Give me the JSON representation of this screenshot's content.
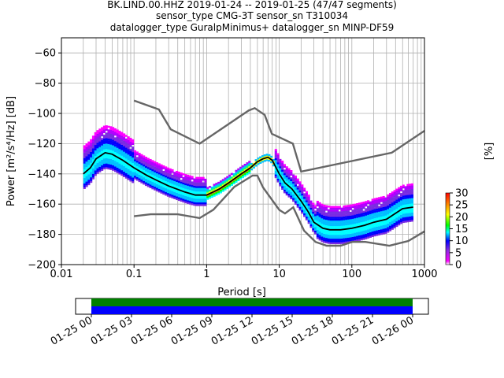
{
  "chart_data": {
    "type": "heatmap",
    "title_lines": [
      "BK.LIND.00.HHZ   2019-01-24 -- 2019-01-25  (47/47 segments)",
      "sensor_type CMG-3T sensor_sn T310034",
      "datalogger_type GuralpMinimus+ datalogger_sn MINP-DF59"
    ],
    "xlabel": "Period [s]",
    "ylabel": "Power [m²/s⁴/Hz] [dB]",
    "xscale": "log",
    "xlim": [
      0.01,
      1000
    ],
    "ylim": [
      -200,
      -50
    ],
    "x_ticks": [
      "0.01",
      "0.1",
      "1",
      "10",
      "100",
      "1000"
    ],
    "y_ticks": [
      "−200",
      "−180",
      "−160",
      "−140",
      "−120",
      "−100",
      "−80",
      "−60"
    ],
    "grid": true,
    "noise_models": {
      "nhnm": {
        "x": [
          0.1,
          0.22,
          0.32,
          0.8,
          3.8,
          4.6,
          6.3,
          7.9,
          15.4,
          20,
          354.8,
          1000
        ],
        "y": [
          -91.5,
          -97.4,
          -110.5,
          -120,
          -98,
          -96.5,
          -101,
          -113.5,
          -120,
          -138.5,
          -126,
          -111.5
        ]
      },
      "nlnm": {
        "x": [
          0.1,
          0.17,
          0.4,
          0.8,
          1.24,
          2.4,
          4.3,
          5,
          6,
          10,
          12,
          15.6,
          21.9,
          31.6,
          45,
          70,
          101,
          154,
          328,
          600,
          1000
        ],
        "y": [
          -168,
          -166.7,
          -166.7,
          -169.2,
          -163.7,
          -148.6,
          -141.1,
          -141.1,
          -149,
          -163.8,
          -166.2,
          -162.1,
          -177.5,
          -185,
          -187.5,
          -187.5,
          -185,
          -185,
          -187.5,
          -184.4,
          -178
        ]
      }
    },
    "mode_curve": {
      "x": [
        0.02,
        0.025,
        0.03,
        0.04,
        0.05,
        0.07,
        0.1,
        0.15,
        0.2,
        0.3,
        0.5,
        0.7,
        1,
        1.5,
        2,
        3,
        4,
        5,
        6,
        7,
        8,
        10,
        12,
        15,
        20,
        25,
        30,
        40,
        50,
        70,
        100,
        150,
        200,
        300,
        500,
        700
      ],
      "y": [
        -140,
        -136,
        -130,
        -126,
        -127,
        -131,
        -136,
        -141,
        -144,
        -148,
        -152,
        -154,
        -154,
        -150,
        -146,
        -140,
        -136,
        -132,
        -130,
        -129,
        -131,
        -140,
        -146,
        -150,
        -158,
        -165,
        -172,
        -176,
        -177,
        -177,
        -176,
        -174,
        -172,
        -170,
        -163,
        -162
      ]
    },
    "colorbar": {
      "label": "[%]",
      "ticks": [
        "0",
        "5",
        "10",
        "15",
        "20",
        "25",
        "30"
      ],
      "range": [
        0,
        30
      ]
    },
    "coverage": {
      "x_ticks": [
        "01-25 00",
        "01-25 03",
        "01-25 06",
        "01-25 09",
        "01-25 12",
        "01-25 15",
        "01-25 18",
        "01-25 21",
        "01-26 00"
      ],
      "colors": {
        "data": "#0000ff",
        "gaps": "#008000"
      }
    },
    "colors": {
      "noise_model": "#666666",
      "mode": "#000000"
    }
  }
}
